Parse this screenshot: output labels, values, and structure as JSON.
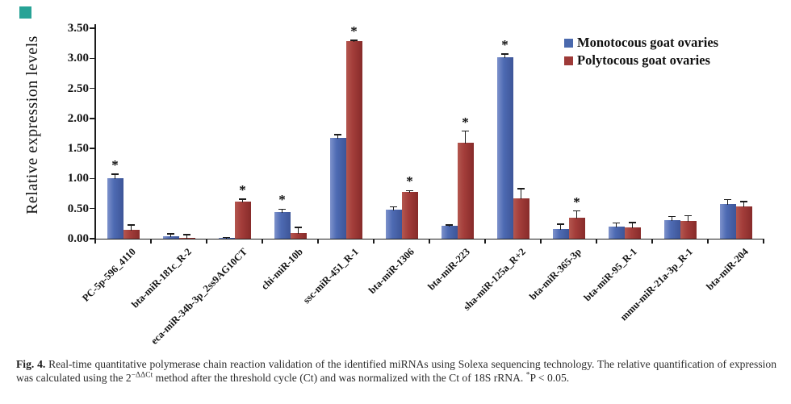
{
  "figure": {
    "corner_marker_color": "#27a396"
  },
  "chart_data": {
    "type": "bar",
    "title": "",
    "ylabel": "Relative expression levels",
    "xlabel": "",
    "ylim": [
      0,
      3.5
    ],
    "ytick_step": 0.5,
    "yticks": [
      "0.00",
      "0.50",
      "1.00",
      "1.50",
      "2.00",
      "2.50",
      "3.00",
      "3.50"
    ],
    "grid": false,
    "legend_position": "top-right",
    "significance_marker": "*",
    "categories": [
      "PC-5p-596_4110",
      "bta-miR-181c_R-2",
      "eca-miR-34b-3p_2ss9AG10CT",
      "chi-miR-10b",
      "ssc-miR-451_R-1",
      "bta-miR-1306",
      "bta-miR-223",
      "sha-miR-125a_R+2",
      "bta-miR-365-3p",
      "bta-miR-95_R-1",
      "mmu-miR-21a-3p_R-1",
      "bta-miR-204"
    ],
    "series": [
      {
        "name": "Monotocous goat ovaries",
        "color": "#4a69ad",
        "values": [
          1.01,
          0.04,
          0.01,
          0.44,
          1.67,
          0.48,
          0.21,
          3.02,
          0.16,
          0.2,
          0.31,
          0.57
        ],
        "errors": [
          0.06,
          0.04,
          0.01,
          0.05,
          0.06,
          0.05,
          0.02,
          0.05,
          0.08,
          0.06,
          0.06,
          0.08
        ],
        "significant": [
          true,
          false,
          false,
          true,
          false,
          false,
          false,
          true,
          false,
          false,
          false,
          false
        ]
      },
      {
        "name": "Polytocous goat ovaries",
        "color": "#9e3a38",
        "values": [
          0.15,
          0.01,
          0.62,
          0.1,
          3.28,
          0.78,
          1.6,
          0.67,
          0.35,
          0.19,
          0.3,
          0.53
        ],
        "errors": [
          0.08,
          0.06,
          0.04,
          0.09,
          0.02,
          0.02,
          0.19,
          0.16,
          0.11,
          0.08,
          0.08,
          0.09
        ],
        "significant": [
          false,
          false,
          true,
          false,
          true,
          true,
          true,
          false,
          true,
          false,
          false,
          false
        ]
      }
    ]
  },
  "caption": {
    "label": "Fig. 4.",
    "part1": " Real-time quantitative polymerase chain reaction validation of the identified miRNAs using Solexa sequencing technology. The relative quantification of expression was calculated using the 2",
    "exponent": "−ΔΔCt",
    "part2": " method after the threshold cycle (Ct) and was normalized with the Ct of 18S rRNA. ",
    "star": "*",
    "part3": "P < 0.05."
  }
}
